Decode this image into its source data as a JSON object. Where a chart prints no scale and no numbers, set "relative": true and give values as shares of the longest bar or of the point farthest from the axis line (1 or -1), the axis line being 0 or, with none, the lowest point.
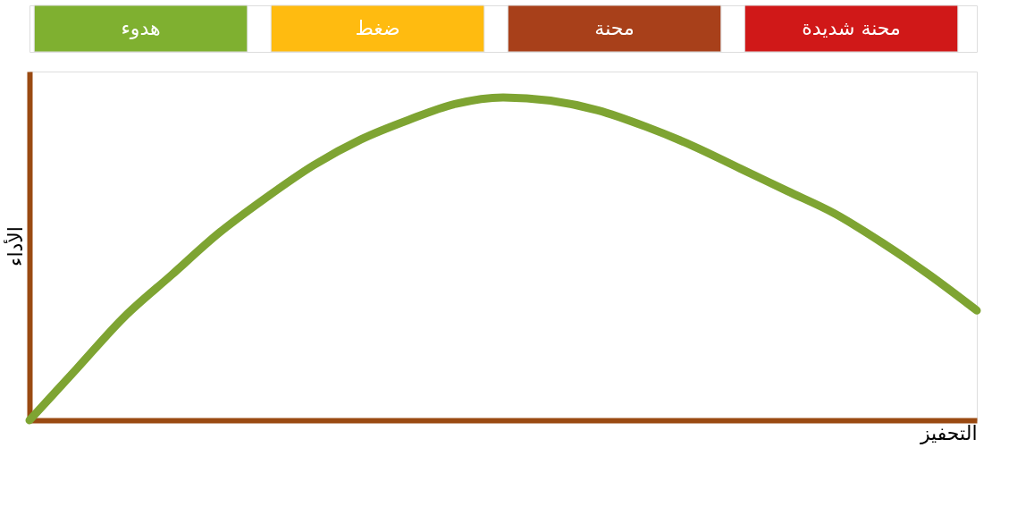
{
  "chart_data": {
    "type": "line",
    "relative": true,
    "xlabel": "التحفيز",
    "ylabel": "الأداء",
    "categories": [
      null,
      null,
      null,
      null,
      null,
      null,
      null,
      null,
      null,
      null,
      null,
      null,
      null,
      null,
      null,
      null,
      null,
      null,
      null,
      null,
      null
    ],
    "series": [
      {
        "color": "#7ea432",
        "values": [
          0,
          0.16,
          0.32,
          0.45,
          0.58,
          0.69,
          0.79,
          0.87,
          0.93,
          0.98,
          1.0,
          0.99,
          0.96,
          0.91,
          0.85,
          0.78,
          0.71,
          0.64,
          0.55,
          0.45,
          0.34
        ]
      }
    ],
    "annotations": [
      "هدوء",
      "ضغط",
      "محنة",
      "محنة شديدة"
    ],
    "grid": false
  }
}
